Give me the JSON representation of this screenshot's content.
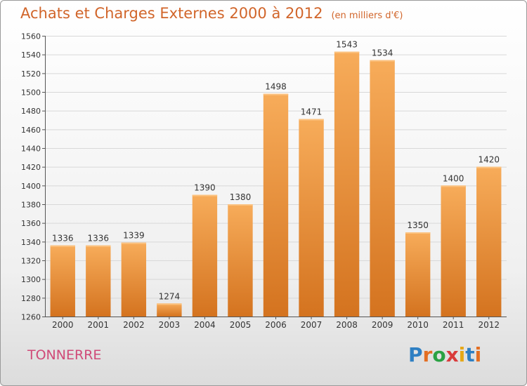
{
  "title": "Achats et Charges Externes 2000 à 2012",
  "unit": "(en milliers d'€)",
  "city": "TONNERRE",
  "logo": {
    "letters": [
      "P",
      "r",
      "o",
      "x",
      "i",
      "t",
      "i"
    ],
    "colors": [
      "#2e7fc3",
      "#e36e22",
      "#2aa243",
      "#d93b3b",
      "#e6a817",
      "#2e7fc3",
      "#e36e22"
    ]
  },
  "colors": {
    "bar": "#ee8a35",
    "bar_top": "#f5a650",
    "text_title": "#d1652a",
    "city": "#d04a78"
  },
  "chart_data": {
    "type": "bar",
    "categories": [
      "2000",
      "2001",
      "2002",
      "2003",
      "2004",
      "2005",
      "2006",
      "2007",
      "2008",
      "2009",
      "2010",
      "2011",
      "2012"
    ],
    "values": [
      1336,
      1336,
      1339,
      1274,
      1390,
      1380,
      1498,
      1471,
      1543,
      1534,
      1350,
      1400,
      1420
    ],
    "ylim": [
      1260,
      1560
    ],
    "yticks": [
      1260,
      1280,
      1300,
      1320,
      1340,
      1360,
      1380,
      1400,
      1420,
      1440,
      1460,
      1480,
      1500,
      1520,
      1540,
      1560
    ],
    "grid": true,
    "xlabel": "",
    "ylabel": ""
  }
}
